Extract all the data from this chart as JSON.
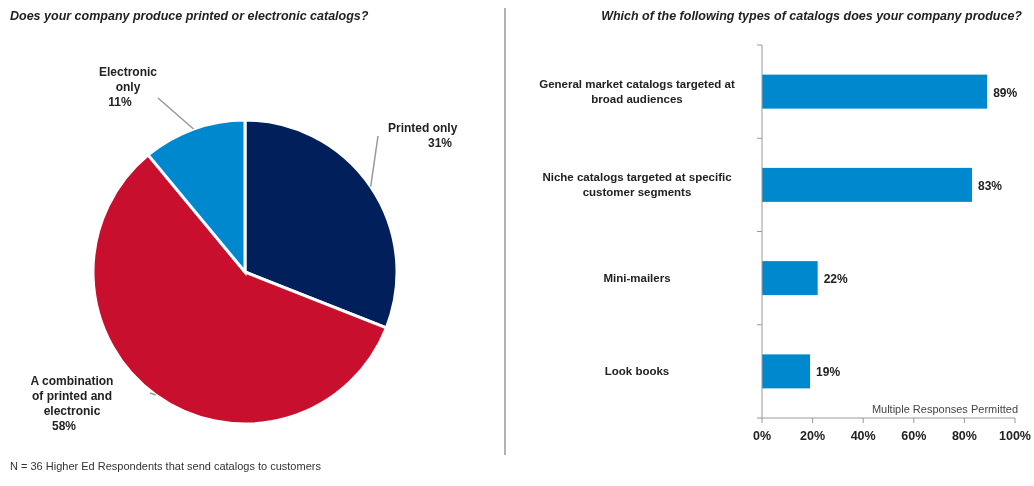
{
  "chart_data": [
    {
      "type": "pie",
      "title": "Does your company produce printed or electronic catalogs?",
      "categories": [
        "Printed only",
        "A combination of printed and electronic",
        "Electronic only"
      ],
      "values": [
        31,
        58,
        11
      ],
      "colors": [
        "#001f5b",
        "#c8102e",
        "#0088cf"
      ],
      "value_labels": [
        "31%",
        "58%",
        "11%"
      ],
      "annotations": [
        "N = 36 Higher Ed Respondents that send catalogs to customers"
      ]
    },
    {
      "type": "bar",
      "orientation": "horizontal",
      "title": "Which of the following types of catalogs does your company produce?",
      "categories": [
        "General market catalogs targeted at broad audiences",
        "Niche catalogs targeted at specific customer segments",
        "Mini-mailers",
        "Look books"
      ],
      "values": [
        89,
        83,
        22,
        19
      ],
      "color": "#0088cf",
      "value_labels": [
        "89%",
        "83%",
        "22%",
        "19%"
      ],
      "xlim": [
        0,
        100
      ],
      "xticks": [
        {
          "value": 0,
          "label": "0%"
        },
        {
          "value": 20,
          "label": "20%"
        },
        {
          "value": 40,
          "label": "40%"
        },
        {
          "value": 60,
          "label": "60%"
        },
        {
          "value": 80,
          "label": "80%"
        },
        {
          "value": 100,
          "label": "100%"
        }
      ],
      "grid": false,
      "annotations": [
        "Multiple Responses Permitted"
      ]
    }
  ]
}
